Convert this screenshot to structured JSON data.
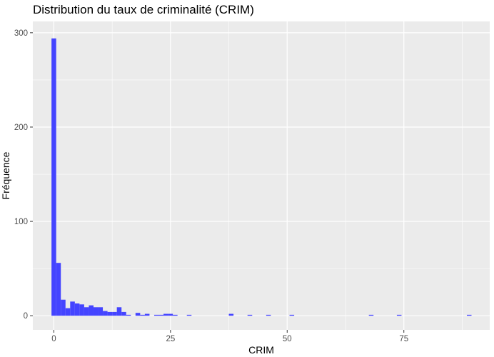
{
  "chart_data": {
    "type": "bar",
    "title": "Distribution du taux de criminalité (CRIM)",
    "xlabel": "CRIM",
    "ylabel": "Fréquence",
    "xlim": [
      -4.5,
      93.4
    ],
    "ylim": [
      -15,
      312
    ],
    "grid": true,
    "x_ticks": [
      0,
      25,
      50,
      75
    ],
    "y_ticks": [
      0,
      100,
      200,
      300
    ],
    "bin_width": 1,
    "bar_color": "#4444FF",
    "panel_color": "#EBEBEB",
    "grid_color": "#FFFFFF",
    "bins": [
      {
        "x": 0,
        "count": 294
      },
      {
        "x": 1,
        "count": 56
      },
      {
        "x": 2,
        "count": 17
      },
      {
        "x": 3,
        "count": 8
      },
      {
        "x": 4,
        "count": 15
      },
      {
        "x": 5,
        "count": 13
      },
      {
        "x": 6,
        "count": 12
      },
      {
        "x": 7,
        "count": 9
      },
      {
        "x": 8,
        "count": 11
      },
      {
        "x": 9,
        "count": 9
      },
      {
        "x": 10,
        "count": 9
      },
      {
        "x": 11,
        "count": 5
      },
      {
        "x": 12,
        "count": 4
      },
      {
        "x": 13,
        "count": 4
      },
      {
        "x": 14,
        "count": 9
      },
      {
        "x": 15,
        "count": 4
      },
      {
        "x": 16,
        "count": 1
      },
      {
        "x": 18,
        "count": 3
      },
      {
        "x": 19,
        "count": 1
      },
      {
        "x": 20,
        "count": 2
      },
      {
        "x": 22,
        "count": 1
      },
      {
        "x": 23,
        "count": 1
      },
      {
        "x": 24,
        "count": 2
      },
      {
        "x": 25,
        "count": 2
      },
      {
        "x": 26,
        "count": 1
      },
      {
        "x": 29,
        "count": 1
      },
      {
        "x": 38,
        "count": 2
      },
      {
        "x": 42,
        "count": 1
      },
      {
        "x": 46,
        "count": 1
      },
      {
        "x": 51,
        "count": 1
      },
      {
        "x": 68,
        "count": 1
      },
      {
        "x": 74,
        "count": 1
      },
      {
        "x": 89,
        "count": 1
      }
    ]
  }
}
